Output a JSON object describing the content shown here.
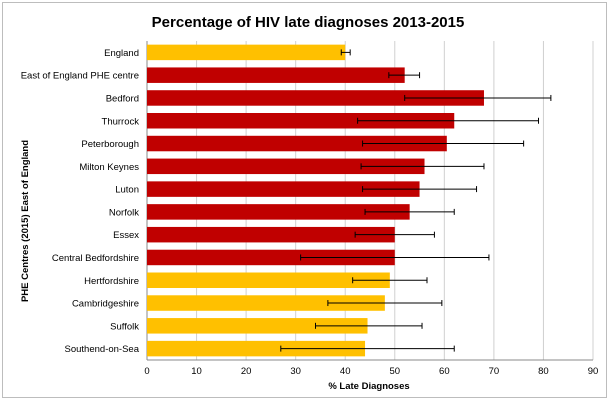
{
  "chart_data": {
    "type": "bar",
    "orientation": "horizontal",
    "title": "Percentage of HIV late diagnoses 2013-2015",
    "xlabel": "% Late Diagnoses",
    "ylabel": "PHE Centres (2015) East of England",
    "xlim": [
      0,
      90
    ],
    "xticks": [
      0,
      10,
      20,
      30,
      40,
      50,
      60,
      70,
      80,
      90
    ],
    "grid": "vertical",
    "legend": "none",
    "colors": {
      "orange": "#FFC000",
      "red": "#C00000"
    },
    "categories": [
      "England",
      "East of England PHE centre",
      "Bedford",
      "Thurrock",
      "Peterborough",
      "Milton Keynes",
      "Luton",
      "Norfolk",
      "Essex",
      "Central Bedfordshire",
      "Hertfordshire",
      "Cambridgeshire",
      "Suffolk",
      "Southend-on-Sea"
    ],
    "values": [
      40,
      52,
      68,
      62,
      60.5,
      56,
      55,
      53,
      50,
      50,
      49,
      48,
      44.5,
      44
    ],
    "error_low": [
      39.2,
      48.8,
      52,
      42.5,
      43.5,
      43.2,
      43.5,
      44,
      42,
      31,
      41.5,
      36.5,
      34,
      27
    ],
    "error_high": [
      41,
      55,
      81.5,
      79,
      76,
      68,
      66.5,
      62,
      58,
      69,
      56.5,
      59.5,
      55.5,
      62
    ],
    "bar_colors": [
      "orange",
      "red",
      "red",
      "red",
      "red",
      "red",
      "red",
      "red",
      "red",
      "red",
      "orange",
      "orange",
      "orange",
      "orange"
    ]
  }
}
